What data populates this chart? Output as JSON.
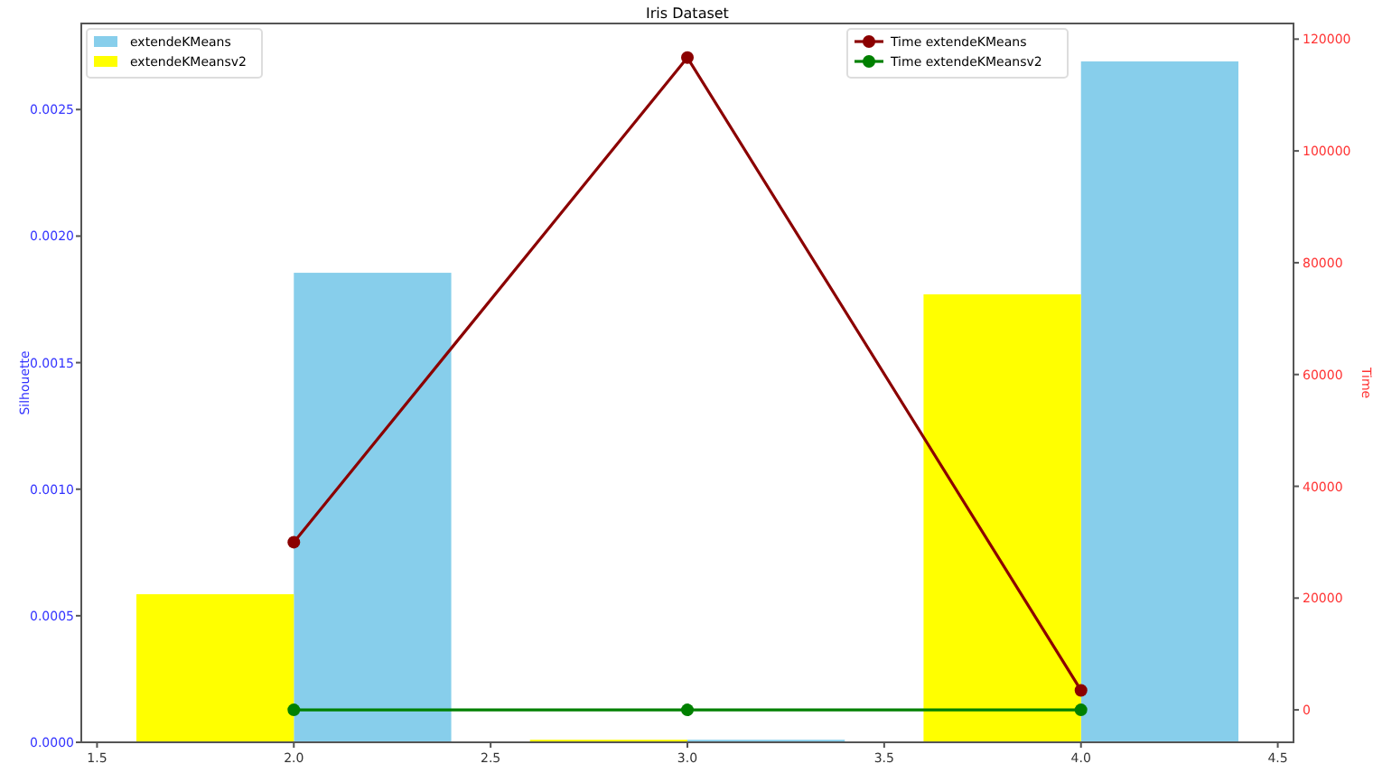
{
  "chart_data": {
    "type": "bar",
    "title": "Iris Dataset",
    "ylabel": "Silhouette",
    "y2label": "Time",
    "x": [
      2,
      3,
      4
    ],
    "series": [
      {
        "name": "extendeKMeans",
        "color": "#87ceeb",
        "values": [
          0.001855,
          1e-05,
          0.00269
        ]
      },
      {
        "name": "extendeKMeansv2",
        "color": "#ffff00",
        "values": [
          0.000585,
          1e-05,
          0.00177
        ]
      },
      {
        "name": "Time extendeKMeans",
        "type": "line",
        "axis": "y2",
        "color": "#8b0000",
        "values": [
          30000,
          116700,
          3500
        ]
      },
      {
        "name": "Time extendeKMeansv2",
        "type": "line",
        "axis": "y2",
        "color": "#008000",
        "values": [
          0,
          0,
          0
        ]
      }
    ],
    "xlim": [
      1.46,
      4.54
    ],
    "xticks": [
      {
        "value": 1.5,
        "label": "1.5"
      },
      {
        "value": 2,
        "label": "2.0"
      },
      {
        "value": 2.5,
        "label": "2.5"
      },
      {
        "value": 3,
        "label": "3.0"
      },
      {
        "value": 3.5,
        "label": "3.5"
      },
      {
        "value": 4,
        "label": "4.0"
      },
      {
        "value": 4.5,
        "label": "4.5"
      }
    ],
    "ylim": [
      0,
      0.00284
    ],
    "yticks": [
      {
        "value": 0,
        "label": "0.0000"
      },
      {
        "value": 0.0005,
        "label": "0.0005"
      },
      {
        "value": 0.001,
        "label": "0.0010"
      },
      {
        "value": 0.0015,
        "label": "0.0015"
      },
      {
        "value": 0.002,
        "label": "0.0020"
      },
      {
        "value": 0.0025,
        "label": "0.0025"
      }
    ],
    "y2lim": [
      -5800,
      122800
    ],
    "y2ticks": [
      0,
      20000,
      40000,
      60000,
      80000,
      100000,
      120000
    ],
    "legend": "top",
    "marker": "circle",
    "grid": false
  }
}
